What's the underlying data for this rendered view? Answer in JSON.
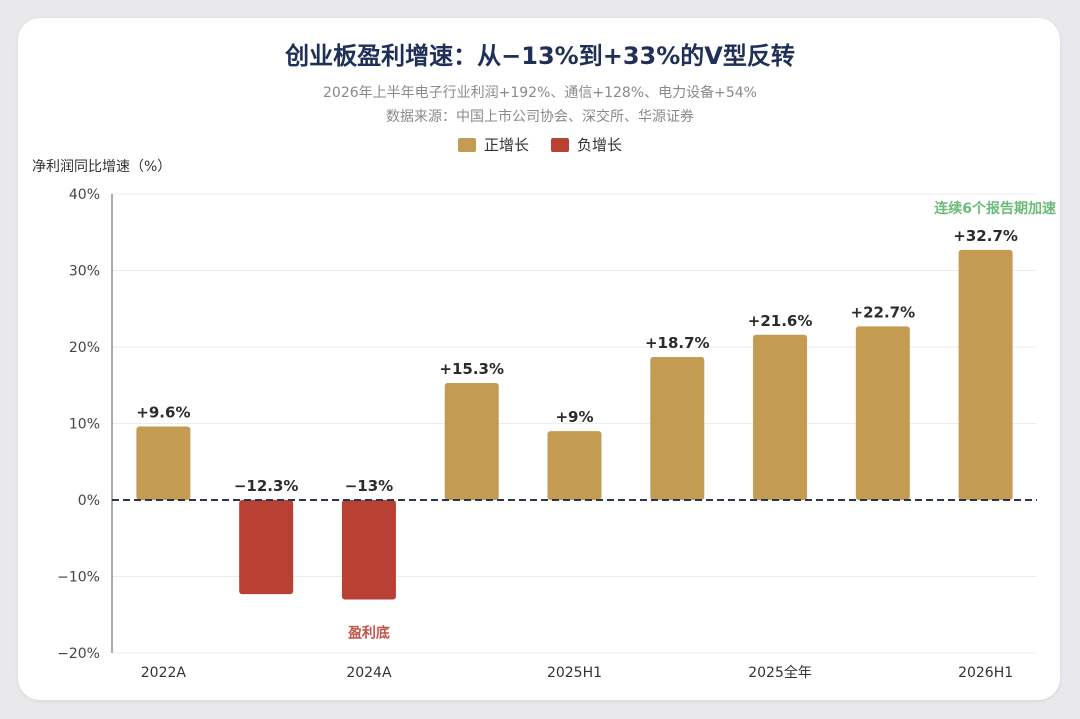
{
  "chart_data": {
    "type": "bar",
    "title": "创业板盈利增速：从−13%到+33%的V型反转",
    "subtitle": "2026年上半年电子行业利润+192%、通信+128%、电力设备+54%",
    "source": "数据来源：中国上市公司协会、深交所、华源证券",
    "ylabel": "净利润同比增速（%）",
    "xlabel": "",
    "ylim": [
      -20,
      40
    ],
    "yticks": [
      -20,
      -10,
      0,
      10,
      20,
      30,
      40
    ],
    "ytick_labels": [
      "−20%",
      "−10%",
      "0%",
      "10%",
      "20%",
      "30%",
      "40%"
    ],
    "legend": [
      {
        "name": "正增长",
        "color": "#c39c52"
      },
      {
        "name": "负增长",
        "color": "#b94133"
      }
    ],
    "legend_position": "top-center",
    "grid": true,
    "values": [
      9.6,
      -12.3,
      -13,
      15.3,
      9,
      18.7,
      21.6,
      22.7,
      32.7
    ],
    "value_labels": [
      "+9.6%",
      "−12.3%",
      "−13%",
      "+15.3%",
      "+9%",
      "+18.7%",
      "+21.6%",
      "+22.7%",
      "+32.7%"
    ],
    "x_tick_labels": [
      "2022A",
      "",
      "2024A",
      "",
      "2025H1",
      "",
      "2025全年",
      "",
      "2026H1"
    ],
    "annotations": [
      {
        "text": "盈利底",
        "bar_index": 2,
        "color": "#c0564a"
      },
      {
        "text": "连续6个报告期加速",
        "bar_index": 8,
        "color": "#6dbb7a"
      }
    ],
    "colors": {
      "positive": "#c39c52",
      "negative": "#b94133",
      "zero_line": "#2a3454",
      "grid": "#ececec",
      "axis": "#555555"
    }
  }
}
